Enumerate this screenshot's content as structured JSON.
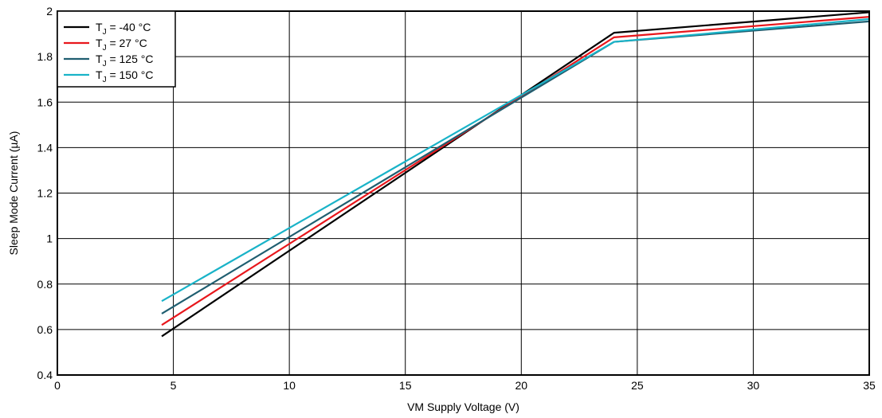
{
  "chart_data": {
    "type": "line",
    "title": "",
    "xlabel": "VM Supply Voltage (V)",
    "ylabel": "Sleep Mode Current (µA)",
    "xlim": [
      0,
      35
    ],
    "ylim": [
      0.4,
      2
    ],
    "xticks": [
      0,
      5,
      10,
      15,
      20,
      25,
      30,
      35
    ],
    "yticks": [
      0.4,
      0.6,
      0.8,
      1,
      1.2,
      1.4,
      1.6,
      1.8,
      2
    ],
    "ytick_labels": [
      "0.4",
      "0.6",
      "0.8",
      "1",
      "1.2",
      "1.4",
      "1.6",
      "1.8",
      "2"
    ],
    "grid": true,
    "legend_position": "top-left",
    "series": [
      {
        "name_main": "T",
        "name_sub": "J",
        "name_rest": " = -40 °C",
        "color": "#000000",
        "x": [
          4.5,
          24,
          35
        ],
        "y": [
          0.57,
          1.905,
          1.995
        ]
      },
      {
        "name_main": "T",
        "name_sub": "J",
        "name_rest": " = 27 °C",
        "color": "#e8171c",
        "x": [
          4.5,
          24,
          35
        ],
        "y": [
          0.62,
          1.885,
          1.975
        ]
      },
      {
        "name_main": "T",
        "name_sub": "J",
        "name_rest": " = 125 °C",
        "color": "#1f5e70",
        "x": [
          4.5,
          24,
          35
        ],
        "y": [
          0.67,
          1.865,
          1.955
        ]
      },
      {
        "name_main": "T",
        "name_sub": "J",
        "name_rest": " = 150 °C",
        "color": "#19b3c8",
        "x": [
          4.5,
          24,
          35
        ],
        "y": [
          0.725,
          1.865,
          1.965
        ]
      }
    ]
  }
}
